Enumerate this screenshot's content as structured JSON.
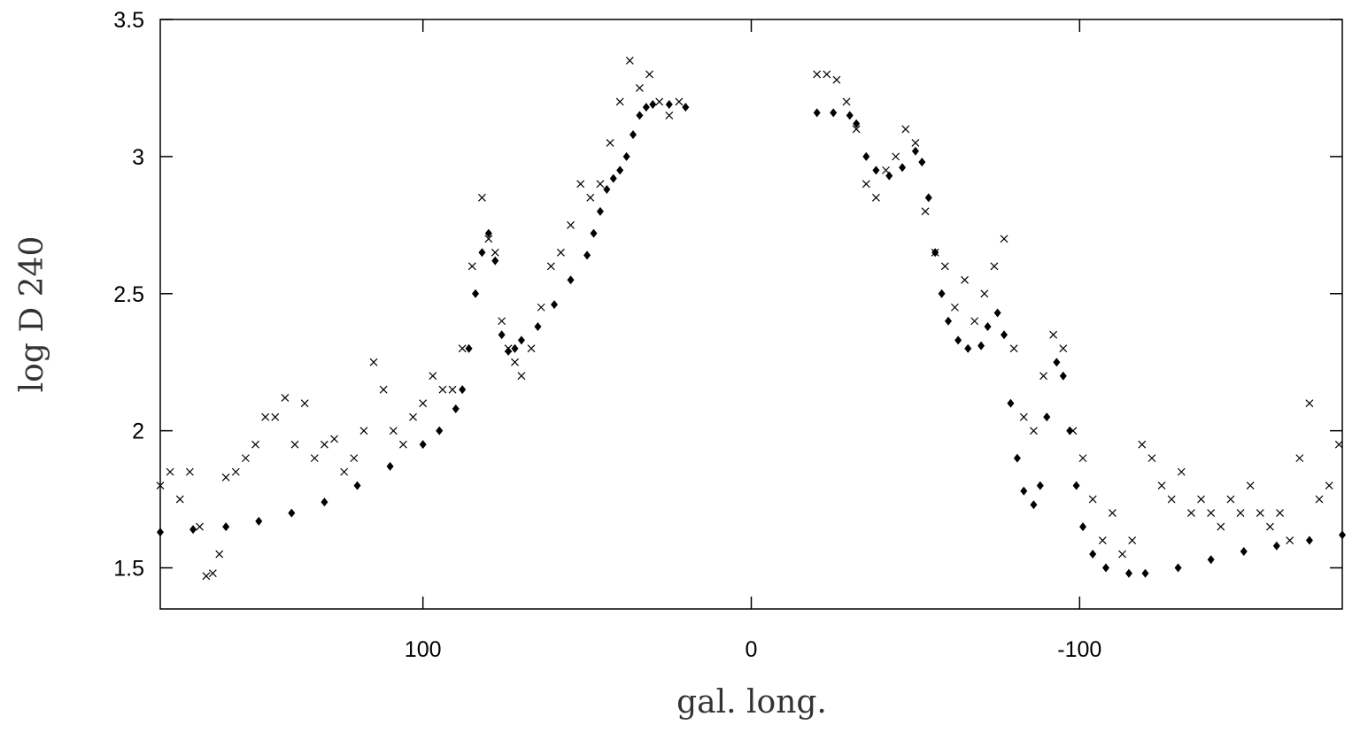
{
  "chart_data": {
    "type": "scatter",
    "x_label": "gal. long.",
    "y_label": "log D 240",
    "xlim": [
      180,
      -180
    ],
    "ylim": [
      1.35,
      3.5
    ],
    "xticks": [
      100,
      0,
      -100
    ],
    "yticks": [
      1.5,
      2,
      2.5,
      3,
      3.5
    ],
    "series": [
      {
        "color": "#000000",
        "marker": "cross",
        "x": [
          180,
          177,
          174,
          171,
          168,
          166,
          164,
          162,
          160,
          157,
          154,
          151,
          148,
          145,
          142,
          139,
          136,
          133,
          130,
          127,
          124,
          121,
          118,
          115,
          112,
          109,
          106,
          103,
          100,
          97,
          94,
          91,
          88,
          85,
          82,
          80,
          78,
          76,
          74,
          72,
          70,
          67,
          64,
          61,
          58,
          55,
          52,
          49,
          46,
          43,
          40,
          37,
          34,
          31,
          28,
          25,
          22,
          -20,
          -23,
          -26,
          -29,
          -32,
          -35,
          -38,
          -41,
          -44,
          -47,
          -50,
          -53,
          -56,
          -59,
          -62,
          -65,
          -68,
          -71,
          -74,
          -77,
          -80,
          -83,
          -86,
          -89,
          -92,
          -95,
          -98,
          -101,
          -104,
          -107,
          -110,
          -113,
          -116,
          -119,
          -122,
          -125,
          -128,
          -131,
          -134,
          -137,
          -140,
          -143,
          -146,
          -149,
          -152,
          -155,
          -158,
          -161,
          -164,
          -167,
          -170,
          -173,
          -176,
          -179
        ],
        "values": [
          1.8,
          1.85,
          1.75,
          1.85,
          1.65,
          1.47,
          1.48,
          1.55,
          1.83,
          1.85,
          1.9,
          1.95,
          2.05,
          2.05,
          2.12,
          1.95,
          2.1,
          1.9,
          1.95,
          1.97,
          1.85,
          1.9,
          2.0,
          2.25,
          2.15,
          2.0,
          1.95,
          2.05,
          2.1,
          2.2,
          2.15,
          2.15,
          2.3,
          2.6,
          2.85,
          2.7,
          2.65,
          2.4,
          2.3,
          2.25,
          2.2,
          2.3,
          2.45,
          2.6,
          2.65,
          2.75,
          2.9,
          2.85,
          2.9,
          3.05,
          3.2,
          3.35,
          3.25,
          3.3,
          3.2,
          3.15,
          3.2,
          3.3,
          3.3,
          3.28,
          3.2,
          3.1,
          2.9,
          2.85,
          2.95,
          3.0,
          3.1,
          3.05,
          2.8,
          2.65,
          2.6,
          2.45,
          2.55,
          2.4,
          2.5,
          2.6,
          2.7,
          2.3,
          2.05,
          2.0,
          2.2,
          2.35,
          2.3,
          2.0,
          1.9,
          1.75,
          1.6,
          1.7,
          1.55,
          1.6,
          1.95,
          1.9,
          1.8,
          1.75,
          1.85,
          1.7,
          1.75,
          1.7,
          1.65,
          1.75,
          1.7,
          1.8,
          1.7,
          1.65,
          1.7,
          1.6,
          1.9,
          2.1,
          1.75,
          1.8,
          1.95
        ]
      },
      {
        "color": "#000000",
        "marker": "diamond",
        "x": [
          180,
          170,
          160,
          150,
          140,
          130,
          120,
          110,
          100,
          95,
          90,
          88,
          86,
          84,
          82,
          80,
          78,
          76,
          74,
          72,
          70,
          65,
          60,
          55,
          50,
          48,
          46,
          44,
          42,
          40,
          38,
          36,
          34,
          32,
          30,
          25,
          20,
          -20,
          -25,
          -30,
          -32,
          -35,
          -38,
          -42,
          -46,
          -50,
          -52,
          -54,
          -56,
          -58,
          -60,
          -63,
          -66,
          -70,
          -72,
          -75,
          -77,
          -79,
          -81,
          -83,
          -86,
          -88,
          -90,
          -93,
          -95,
          -97,
          -99,
          -101,
          -104,
          -108,
          -115,
          -120,
          -130,
          -140,
          -150,
          -160,
          -170,
          -180
        ],
        "values": [
          1.63,
          1.64,
          1.65,
          1.67,
          1.7,
          1.74,
          1.8,
          1.87,
          1.95,
          2.0,
          2.08,
          2.15,
          2.3,
          2.5,
          2.65,
          2.72,
          2.62,
          2.35,
          2.29,
          2.3,
          2.33,
          2.38,
          2.46,
          2.55,
          2.64,
          2.72,
          2.8,
          2.88,
          2.92,
          2.95,
          3.0,
          3.08,
          3.15,
          3.18,
          3.19,
          3.19,
          3.18,
          3.16,
          3.16,
          3.15,
          3.12,
          3.0,
          2.95,
          2.93,
          2.96,
          3.02,
          2.98,
          2.85,
          2.65,
          2.5,
          2.4,
          2.33,
          2.3,
          2.31,
          2.38,
          2.43,
          2.35,
          2.1,
          1.9,
          1.78,
          1.73,
          1.8,
          2.05,
          2.25,
          2.2,
          2.0,
          1.8,
          1.65,
          1.55,
          1.5,
          1.48,
          1.48,
          1.5,
          1.53,
          1.56,
          1.58,
          1.6,
          1.62
        ]
      }
    ]
  }
}
